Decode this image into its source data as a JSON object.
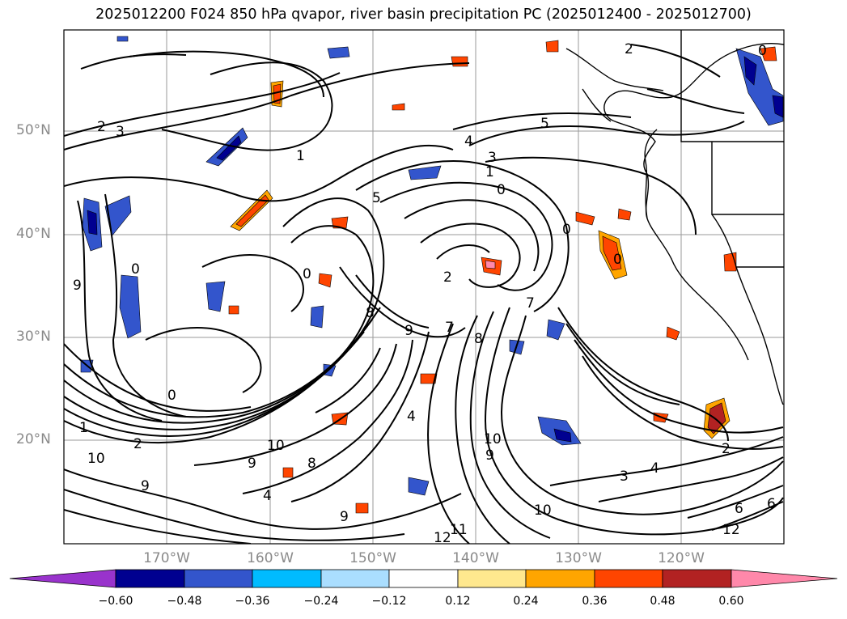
{
  "title": "2025012200 F024 850 hPa qvapor, river basin precipitation PC (2025012400 - 2025012700)",
  "map": {
    "lat_labels": [
      "50°N",
      "40°N",
      "30°N",
      "20°N"
    ],
    "lon_labels": [
      "170°W",
      "160°W",
      "150°W",
      "140°W",
      "130°W",
      "120°W"
    ],
    "contour_labels": [
      "2",
      "3",
      "1",
      "5",
      "4",
      "0",
      "8",
      "9",
      "7",
      "10",
      "6",
      "11",
      "12"
    ],
    "contour_color": "#000000",
    "coastline_color": "#000000"
  },
  "colorbar": {
    "colors": [
      "#9933cc",
      "#000090",
      "#3355cc",
      "#00bbff",
      "#aadeff",
      "#ffffff",
      "#ffe88e",
      "#ffa500",
      "#ff4500",
      "#b22222",
      "#ff88aa"
    ],
    "ticks": [
      "−0.60",
      "−0.48",
      "−0.36",
      "−0.24",
      "−0.12",
      "0.12",
      "0.24",
      "0.36",
      "0.48",
      "0.60"
    ],
    "extend": "both"
  }
}
